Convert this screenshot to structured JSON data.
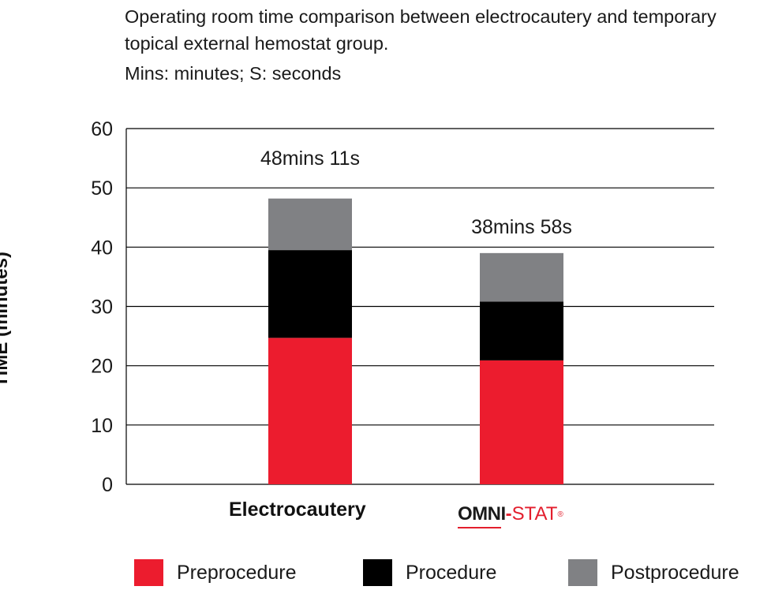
{
  "chart_data": {
    "type": "bar",
    "stacked": true,
    "title": "Operating room time comparison between electrocautery and temporary topical external hemostat group.",
    "subtitle": "Mins: minutes; S: seconds",
    "ylabel": "TIME (minutes)",
    "xlabel": "",
    "ylim": [
      0,
      60
    ],
    "yticks": [
      0,
      10,
      20,
      30,
      40,
      50,
      60
    ],
    "grid": true,
    "legend_position": "bottom",
    "categories": [
      "Electrocautery",
      "OMNI-STAT"
    ],
    "series": [
      {
        "name": "Preprocedure",
        "color": "#ec1c2e",
        "values": [
          24.7,
          20.9
        ]
      },
      {
        "name": "Procedure",
        "color": "#000000",
        "values": [
          14.8,
          9.9
        ]
      },
      {
        "name": "Postprocedure",
        "color": "#808184",
        "values": [
          8.7,
          8.2
        ]
      }
    ],
    "totals": [
      48.18,
      38.97
    ],
    "annotations": [
      "48mins 11s",
      "38mins 58s"
    ]
  },
  "logo": {
    "omni": "OMNI",
    "dash": "-",
    "stat": "STAT",
    "reg": "®"
  }
}
